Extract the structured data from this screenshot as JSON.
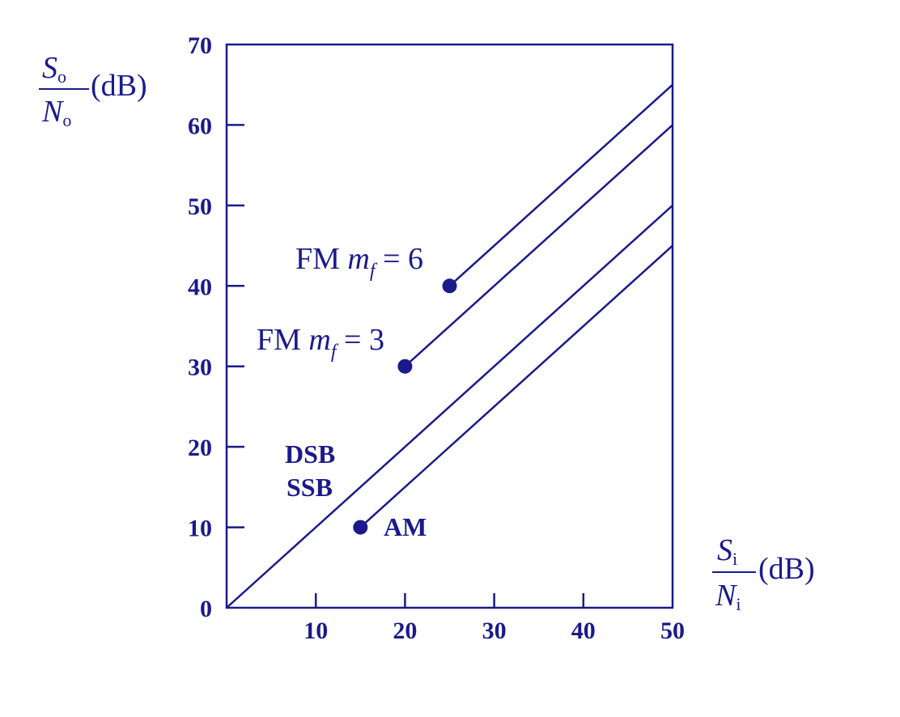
{
  "chart_data": {
    "type": "line",
    "title": "",
    "x_axis": {
      "label_numerator": "S",
      "label_numerator_sub": "i",
      "label_denominator": "N",
      "label_denominator_sub": "i",
      "label_unit": "(dB)",
      "range": [
        0,
        50
      ],
      "ticks": [
        10,
        20,
        30,
        40,
        50
      ]
    },
    "y_axis": {
      "label_numerator": "S",
      "label_numerator_sub": "o",
      "label_denominator": "N",
      "label_denominator_sub": "o",
      "label_unit": "(dB)",
      "range": [
        0,
        70
      ],
      "ticks": [
        0,
        10,
        20,
        30,
        40,
        50,
        60,
        70
      ]
    },
    "grid": false,
    "series": [
      {
        "name": "FM m_f = 6",
        "label_prefix": "FM ",
        "label_var": "m",
        "label_sub": "f",
        "label_suffix": " = 6",
        "points": [
          [
            25,
            40
          ],
          [
            50,
            65
          ]
        ],
        "start_marker": true
      },
      {
        "name": "FM m_f = 3",
        "label_prefix": "FM ",
        "label_var": "m",
        "label_sub": "f",
        "label_suffix": " = 3",
        "points": [
          [
            20,
            30
          ],
          [
            50,
            60
          ]
        ],
        "start_marker": true
      },
      {
        "name": "DSB SSB",
        "label_lines": [
          "DSB",
          "SSB"
        ],
        "points": [
          [
            0,
            0
          ],
          [
            50,
            50
          ]
        ],
        "start_marker": false
      },
      {
        "name": "AM",
        "label_lines": [
          "AM"
        ],
        "points": [
          [
            15,
            10
          ],
          [
            50,
            45
          ]
        ],
        "start_marker": true
      }
    ],
    "colors": {
      "ink": "#1a1a8c"
    }
  }
}
